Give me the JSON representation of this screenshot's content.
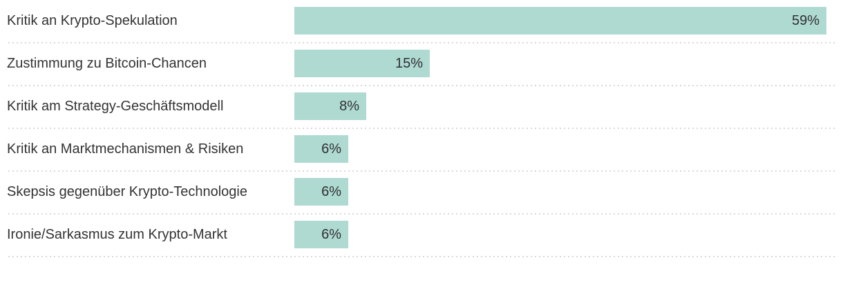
{
  "chart_data": {
    "type": "bar",
    "orientation": "horizontal",
    "title": "",
    "xlabel": "",
    "ylabel": "",
    "categories": [
      "Kritik an Krypto-Spekulation",
      "Zustimmung zu Bitcoin-Chancen",
      "Kritik am Strategy-Geschäftsmodell",
      "Kritik an Marktmechanismen & Risiken",
      "Skepsis gegenüber Krypto-Technologie",
      "Ironie/Sarkasmus zum Krypto-Markt"
    ],
    "values": [
      59,
      15,
      8,
      6,
      6,
      6
    ],
    "value_labels": [
      "59%",
      "15%",
      "8%",
      "6%",
      "6%",
      "6%"
    ],
    "xlim": [
      0,
      59
    ],
    "grid": false,
    "legend": false,
    "colors": {
      "bar_fill": "#aedad2",
      "label_text": "#333333",
      "value_text": "#303030",
      "divider": "#d8d8d8",
      "background": "#ffffff"
    }
  }
}
